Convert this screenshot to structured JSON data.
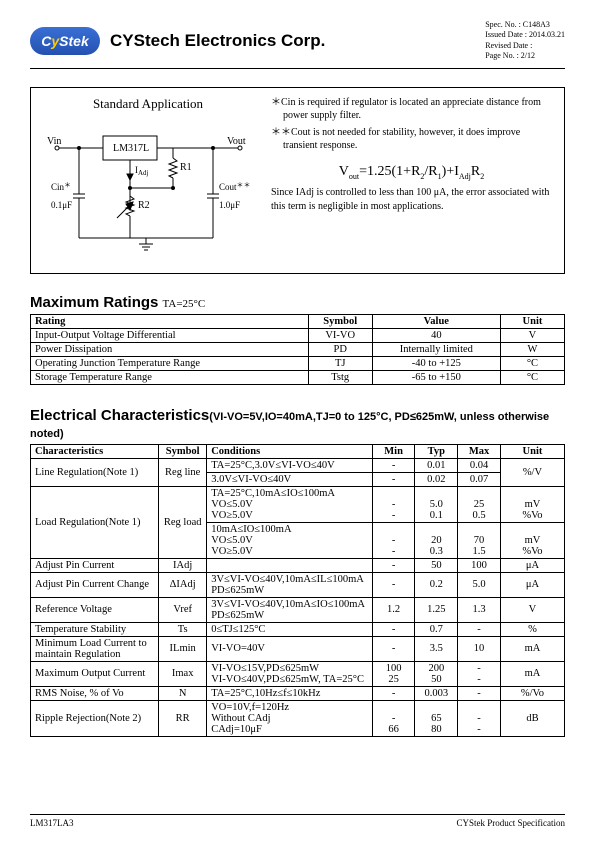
{
  "header": {
    "logo_text_c": "C",
    "logo_text_y": "y",
    "logo_text_rest": "Stek",
    "company": "CYStech Electronics Corp.",
    "spec_no_label": "Spec. No. :",
    "spec_no": "C148A3",
    "issued_label": "Issued Date :",
    "issued": "2014.03.21",
    "revised_label": "Revised Date :",
    "revised": "",
    "page_label": "Page No. :",
    "page": "2/12"
  },
  "app": {
    "title": "Standard Application",
    "chip_label": "LM317L",
    "vin": "Vin",
    "vout": "Vout",
    "iadj": "IAdj",
    "r1": "R1",
    "r2": "R2",
    "cin_label": "Cin",
    "cin_note": "＊",
    "cin_val": "0.1μF",
    "cout_label": "Cout",
    "cout_note": "＊＊",
    "cout_val": "1.0μF",
    "note1": "＊Cin is required if regulator is located an appreciate distance from power supply filter.",
    "note2": "＊＊Cout is not needed for stability, however, it does improve transient response.",
    "formula": "Vout=1.25(1+R2/R1)+IAdjR2",
    "iadj_note": "Since IAdj is controlled to less than 100 μA, the error associated with this term is negligible in most applications."
  },
  "max_ratings": {
    "title": "Maximum Ratings",
    "cond": "TA=25°C",
    "headers": [
      "Rating",
      "Symbol",
      "Value",
      "Unit"
    ],
    "rows": [
      [
        "Input-Output Voltage Differential",
        "VI-VO",
        "40",
        "V"
      ],
      [
        "Power Dissipation",
        "PD",
        "Internally limited",
        "W"
      ],
      [
        "Operating Junction Temperature Range",
        "TJ",
        "-40 to +125",
        "°C"
      ],
      [
        "Storage Temperature Range",
        "Tstg",
        "-65 to +150",
        "°C"
      ]
    ]
  },
  "elec": {
    "title": "Electrical Characteristics",
    "cond": "(VI-VO=5V,IO=40mA,TJ=0 to 125°C, PD≤625mW, unless otherwise noted)",
    "headers": [
      "Characteristics",
      "Symbol",
      "Conditions",
      "Min",
      "Typ",
      "Max",
      "Unit"
    ],
    "rows": [
      {
        "char": "Line Regulation(Note 1)",
        "sym": "Reg line",
        "cond": "TA=25°C,3.0V≤VI-VO≤40V",
        "min": "-",
        "typ": "0.01",
        "max": "0.04",
        "unit": "%/V",
        "rs_char": 2,
        "rs_sym": 2,
        "rs_unit": 2
      },
      {
        "cond": "3.0V≤VI-VO≤40V",
        "min": "-",
        "typ": "0.02",
        "max": "0.07"
      },
      {
        "char": "Load Regulation(Note 1)",
        "sym": "Reg load",
        "cond": "TA=25°C,10mA≤IO≤100mA\nVO≤5.0V\nVO≥5.0V",
        "min": "\n-\n-",
        "typ": "\n5.0\n0.1",
        "max": "\n25\n0.5",
        "unit": "\nmV\n%Vo",
        "rs_char": 2,
        "rs_sym": 2
      },
      {
        "cond": "10mA≤IO≤100mA\nVO≤5.0V\nVO≥5.0V",
        "min": "\n-\n-",
        "typ": "\n20\n0.3",
        "max": "\n70\n1.5",
        "unit": "\nmV\n%Vo"
      },
      {
        "char": "Adjust Pin Current",
        "sym": "IAdj",
        "cond": "",
        "min": "-",
        "typ": "50",
        "max": "100",
        "unit": "μA"
      },
      {
        "char": "Adjust Pin Current Change",
        "sym": "ΔIAdj",
        "cond": "3V≤VI-VO≤40V,10mA≤IL≤100mA\nPD≤625mW",
        "min": "-",
        "typ": "0.2",
        "max": "5.0",
        "unit": "μA"
      },
      {
        "char": "Reference Voltage",
        "sym": "Vref",
        "cond": "3V≤VI-VO≤40V,10mA≤IO≤100mA\nPD≤625mW",
        "min": "1.2",
        "typ": "1.25",
        "max": "1.3",
        "unit": "V"
      },
      {
        "char": "Temperature Stability",
        "sym": "Ts",
        "cond": "0≤TJ≤125°C",
        "min": "-",
        "typ": "0.7",
        "max": "-",
        "unit": "%"
      },
      {
        "char": "Minimum Load Current to maintain Regulation",
        "sym": "ILmin",
        "cond": "VI-VO=40V",
        "min": "-",
        "typ": "3.5",
        "max": "10",
        "unit": "mA"
      },
      {
        "char": "Maximum Output Current",
        "sym": "Imax",
        "cond": "VI-VO≤15V,PD≤625mW\nVI-VO≤40V,PD≤625mW, TA=25°C",
        "min": "100\n25",
        "typ": "200\n50",
        "max": "-\n-",
        "unit": "mA"
      },
      {
        "char": "RMS Noise, % of Vo",
        "sym": "N",
        "cond": "TA=25°C,10Hz≤f≤10kHz",
        "min": "-",
        "typ": "0.003",
        "max": "-",
        "unit": "%/Vo"
      },
      {
        "char": "Ripple Rejection(Note 2)",
        "sym": "RR",
        "cond": "VO=10V,f=120Hz\nWithout CAdj\nCAdj=10μF",
        "min": "\n-\n66",
        "typ": "\n65\n80",
        "max": "\n-\n-",
        "unit": "dB"
      }
    ]
  },
  "footer": {
    "left": "LM317LA3",
    "right": "CYStek Product Specification"
  },
  "colors": {
    "logo_bg": "#2e5cc0",
    "logo_y": "#ffcc00",
    "border": "#000000"
  }
}
